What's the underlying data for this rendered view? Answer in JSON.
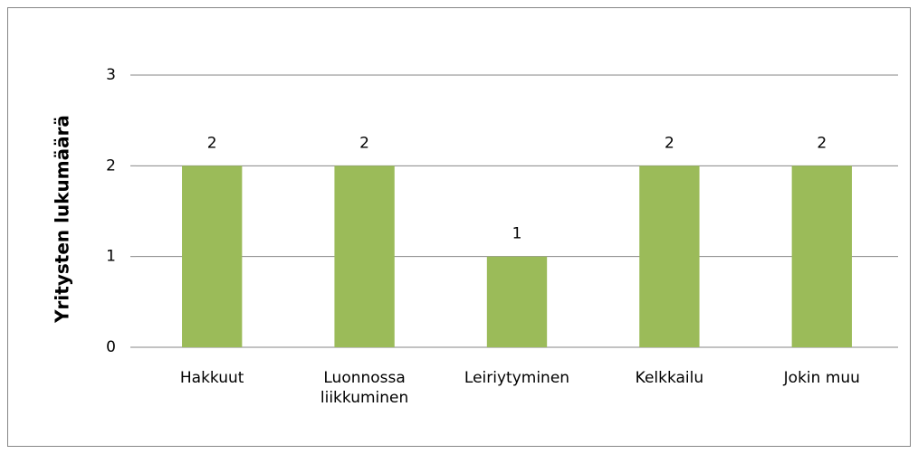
{
  "chart_data": {
    "type": "bar",
    "categories": [
      "Hakkuut",
      "Luonnossa liikkuminen",
      "Leiriytyminen",
      "Kelkkailu",
      "Jokin muu"
    ],
    "values": [
      2,
      2,
      1,
      2,
      2
    ],
    "color": "#9bbb59",
    "y_label": "Yritysten lukumäärä",
    "ylim": [
      0,
      3
    ],
    "yticks": [
      0,
      1,
      2,
      3
    ],
    "grid": true
  }
}
